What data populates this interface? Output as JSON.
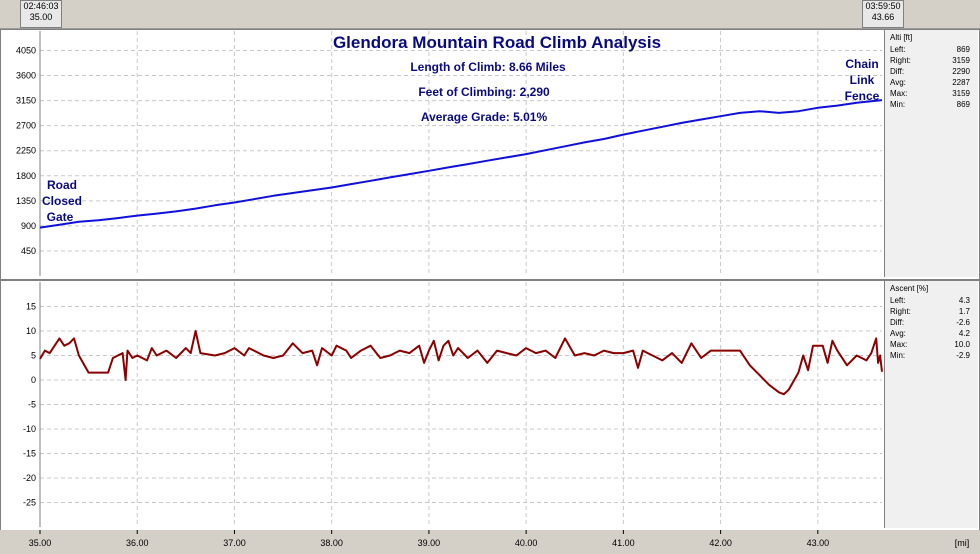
{
  "markers": {
    "left": {
      "time": "02:46:03",
      "dist": "35.00"
    },
    "right": {
      "time": "03:59:50",
      "dist": "43.66"
    }
  },
  "annotations": {
    "title": "Glendora Mountain Road Climb Analysis",
    "length": "Length of Climb: 8.66 Miles",
    "feet": "Feet of Climbing: 2,290",
    "grade": "Average Grade: 5.01%",
    "start_label": [
      "Road",
      "Closed",
      "Gate"
    ],
    "end_label": [
      "Chain",
      "Link",
      "Fence"
    ]
  },
  "x_unit": "[mi]",
  "colors": {
    "altitude": "#1010dd",
    "ascent": "#8b0000",
    "annotation": "#0a0a80"
  },
  "stats": {
    "altitude": {
      "header": "Alti [ft]",
      "rows": [
        {
          "label": "Left:",
          "value": "869"
        },
        {
          "label": "Right:",
          "value": "3159"
        },
        {
          "label": "Diff:",
          "value": "2290"
        },
        {
          "label": "Avg:",
          "value": "2287"
        },
        {
          "label": "Max:",
          "value": "3159"
        },
        {
          "label": "Min:",
          "value": "869"
        }
      ]
    },
    "ascent": {
      "header": "Ascent [%]",
      "rows": [
        {
          "label": "Left:",
          "value": "4.3"
        },
        {
          "label": "Right:",
          "value": "1.7"
        },
        {
          "label": "Diff:",
          "value": "-2.6"
        },
        {
          "label": "Avg:",
          "value": "4.2"
        },
        {
          "label": "Max:",
          "value": "10.0"
        },
        {
          "label": "Min:",
          "value": "-2.9"
        }
      ]
    }
  },
  "chart_data": [
    {
      "type": "line",
      "title": "Glendora Mountain Road Climb Analysis",
      "xlabel": "[mi]",
      "ylabel": "Alti [ft]",
      "xlim": [
        35.0,
        43.66
      ],
      "ylim": [
        0,
        4400
      ],
      "x_ticks": [
        "35.00",
        "36.00",
        "37.00",
        "38.00",
        "39.00",
        "40.00",
        "41.00",
        "42.00",
        "43.00"
      ],
      "y_ticks": [
        "450",
        "900",
        "1350",
        "1800",
        "2250",
        "2700",
        "3150",
        "3600",
        "4050"
      ],
      "grid": true,
      "series": [
        {
          "values": [
            [
              35.0,
              869
            ],
            [
              35.2,
              920
            ],
            [
              35.4,
              975
            ],
            [
              35.6,
              1000
            ],
            [
              35.8,
              1040
            ],
            [
              36.0,
              1085
            ],
            [
              36.2,
              1120
            ],
            [
              36.4,
              1160
            ],
            [
              36.6,
              1210
            ],
            [
              36.8,
              1270
            ],
            [
              37.0,
              1320
            ],
            [
              37.2,
              1380
            ],
            [
              37.4,
              1440
            ],
            [
              37.6,
              1490
            ],
            [
              37.8,
              1540
            ],
            [
              38.0,
              1590
            ],
            [
              38.2,
              1650
            ],
            [
              38.4,
              1710
            ],
            [
              38.6,
              1770
            ],
            [
              38.8,
              1830
            ],
            [
              39.0,
              1890
            ],
            [
              39.2,
              1950
            ],
            [
              39.4,
              2010
            ],
            [
              39.6,
              2070
            ],
            [
              39.8,
              2130
            ],
            [
              40.0,
              2190
            ],
            [
              40.2,
              2260
            ],
            [
              40.4,
              2330
            ],
            [
              40.6,
              2400
            ],
            [
              40.8,
              2460
            ],
            [
              41.0,
              2540
            ],
            [
              41.2,
              2610
            ],
            [
              41.4,
              2680
            ],
            [
              41.6,
              2750
            ],
            [
              41.8,
              2810
            ],
            [
              42.0,
              2870
            ],
            [
              42.2,
              2930
            ],
            [
              42.4,
              2960
            ],
            [
              42.6,
              2930
            ],
            [
              42.8,
              2960
            ],
            [
              43.0,
              3020
            ],
            [
              43.2,
              3060
            ],
            [
              43.4,
              3110
            ],
            [
              43.66,
              3159
            ]
          ]
        }
      ]
    },
    {
      "type": "line",
      "ylabel": "Ascent [%]",
      "xlim": [
        35.0,
        43.66
      ],
      "ylim": [
        -30,
        20
      ],
      "y_ticks": [
        "15",
        "10",
        "5",
        "0",
        "-5",
        "-10",
        "-15",
        "-20",
        "-25"
      ],
      "grid": true,
      "series": [
        {
          "values": [
            [
              35.0,
              4.3
            ],
            [
              35.05,
              6
            ],
            [
              35.1,
              5.5
            ],
            [
              35.15,
              7
            ],
            [
              35.2,
              8.5
            ],
            [
              35.25,
              7
            ],
            [
              35.3,
              7.5
            ],
            [
              35.35,
              8.5
            ],
            [
              35.4,
              5
            ],
            [
              35.5,
              1.5
            ],
            [
              35.7,
              1.5
            ],
            [
              35.75,
              4.5
            ],
            [
              35.85,
              5.5
            ],
            [
              35.88,
              0
            ],
            [
              35.9,
              6
            ],
            [
              35.95,
              4.5
            ],
            [
              36.0,
              5
            ],
            [
              36.1,
              4
            ],
            [
              36.15,
              6.5
            ],
            [
              36.2,
              5
            ],
            [
              36.3,
              6
            ],
            [
              36.4,
              4.5
            ],
            [
              36.5,
              6.5
            ],
            [
              36.55,
              5.5
            ],
            [
              36.6,
              10
            ],
            [
              36.65,
              5.5
            ],
            [
              36.8,
              5
            ],
            [
              36.9,
              5.5
            ],
            [
              37.0,
              6.5
            ],
            [
              37.1,
              5
            ],
            [
              37.15,
              6.5
            ],
            [
              37.3,
              5
            ],
            [
              37.4,
              4.5
            ],
            [
              37.5,
              5
            ],
            [
              37.6,
              7.5
            ],
            [
              37.7,
              5.5
            ],
            [
              37.8,
              6
            ],
            [
              37.85,
              3
            ],
            [
              37.9,
              6.5
            ],
            [
              38.0,
              5
            ],
            [
              38.05,
              7
            ],
            [
              38.15,
              6
            ],
            [
              38.2,
              4.5
            ],
            [
              38.3,
              6
            ],
            [
              38.4,
              7
            ],
            [
              38.5,
              4.5
            ],
            [
              38.6,
              5
            ],
            [
              38.7,
              6
            ],
            [
              38.8,
              5.5
            ],
            [
              38.9,
              7
            ],
            [
              38.95,
              3.5
            ],
            [
              39.0,
              6
            ],
            [
              39.05,
              8
            ],
            [
              39.1,
              4
            ],
            [
              39.15,
              7
            ],
            [
              39.2,
              8
            ],
            [
              39.25,
              5
            ],
            [
              39.3,
              6.5
            ],
            [
              39.4,
              4.5
            ],
            [
              39.5,
              6
            ],
            [
              39.6,
              3.5
            ],
            [
              39.7,
              6
            ],
            [
              39.8,
              5.5
            ],
            [
              39.9,
              5
            ],
            [
              40.0,
              6.5
            ],
            [
              40.1,
              5.5
            ],
            [
              40.2,
              6
            ],
            [
              40.3,
              4.5
            ],
            [
              40.4,
              8.5
            ],
            [
              40.5,
              5
            ],
            [
              40.6,
              5.5
            ],
            [
              40.7,
              5
            ],
            [
              40.8,
              6
            ],
            [
              40.9,
              5.5
            ],
            [
              41.0,
              5.5
            ],
            [
              41.1,
              6
            ],
            [
              41.15,
              2.5
            ],
            [
              41.2,
              6
            ],
            [
              41.3,
              5
            ],
            [
              41.4,
              4
            ],
            [
              41.5,
              5.5
            ],
            [
              41.6,
              3.5
            ],
            [
              41.7,
              7.5
            ],
            [
              41.8,
              4.5
            ],
            [
              41.9,
              6
            ],
            [
              42.0,
              6
            ],
            [
              42.2,
              6
            ],
            [
              42.3,
              3
            ],
            [
              42.4,
              1
            ],
            [
              42.5,
              -1
            ],
            [
              42.6,
              -2.5
            ],
            [
              42.65,
              -2.9
            ],
            [
              42.7,
              -2
            ],
            [
              42.8,
              1.5
            ],
            [
              42.85,
              5
            ],
            [
              42.9,
              2
            ],
            [
              42.95,
              7
            ],
            [
              43.05,
              7
            ],
            [
              43.1,
              3.5
            ],
            [
              43.15,
              8
            ],
            [
              43.2,
              6
            ],
            [
              43.3,
              3
            ],
            [
              43.4,
              5
            ],
            [
              43.5,
              4
            ],
            [
              43.55,
              5.5
            ],
            [
              43.6,
              8.5
            ],
            [
              43.62,
              3.5
            ],
            [
              43.64,
              5
            ],
            [
              43.66,
              1.7
            ]
          ]
        }
      ]
    }
  ]
}
